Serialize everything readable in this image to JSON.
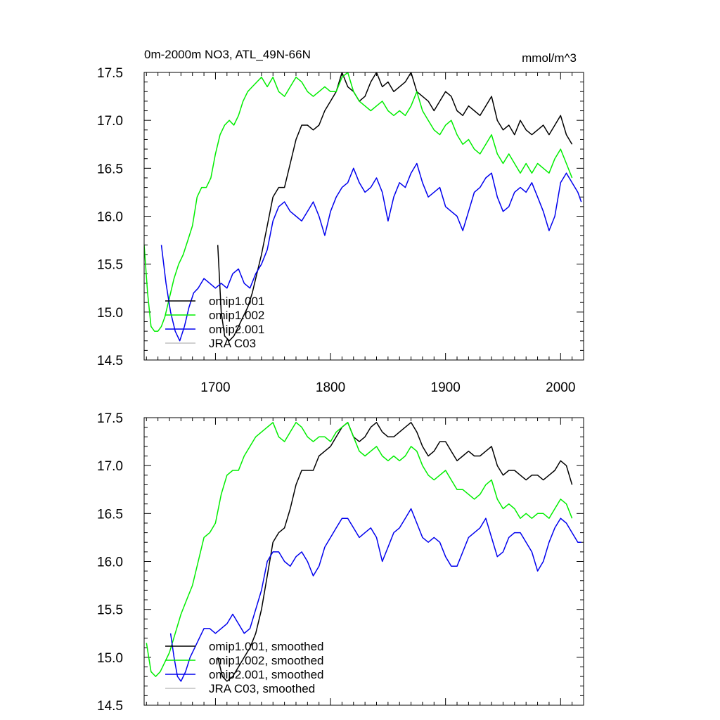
{
  "chart_data": [
    {
      "type": "line",
      "title": "0m-2000m NO3, ATL_49N-66N",
      "units": "mmol/m^3",
      "xlim": [
        1638,
        2020
      ],
      "ylim": [
        14.5,
        17.5
      ],
      "x_ticks": [
        1700,
        1800,
        1900,
        2000
      ],
      "y_ticks": [
        "14.5",
        "15.0",
        "15.5",
        "16.0",
        "16.5",
        "17.0",
        "17.5"
      ],
      "show_x_tick_labels": true,
      "legend_position": "lower-left",
      "legend": [
        "omip1.001",
        "omip1.002",
        "omip2.001",
        "JRA C03"
      ],
      "series": [
        {
          "name": "omip1.001",
          "color": "#000000",
          "x": [
            1702,
            1705,
            1708,
            1712,
            1716,
            1720,
            1724,
            1728,
            1732,
            1736,
            1740,
            1745,
            1750,
            1755,
            1760,
            1765,
            1770,
            1775,
            1780,
            1785,
            1790,
            1795,
            1800,
            1805,
            1810,
            1815,
            1820,
            1825,
            1830,
            1835,
            1840,
            1845,
            1850,
            1855,
            1860,
            1865,
            1870,
            1875,
            1880,
            1885,
            1890,
            1895,
            1900,
            1905,
            1910,
            1915,
            1920,
            1925,
            1930,
            1935,
            1940,
            1945,
            1950,
            1955,
            1960,
            1965,
            1970,
            1975,
            1980,
            1985,
            1990,
            1995,
            2000,
            2005,
            2010
          ],
          "y": [
            15.7,
            15.0,
            14.75,
            14.7,
            14.75,
            14.85,
            14.95,
            15.05,
            15.2,
            15.4,
            15.6,
            15.9,
            16.2,
            16.3,
            16.3,
            16.55,
            16.8,
            16.95,
            16.95,
            16.9,
            16.95,
            17.1,
            17.2,
            17.3,
            17.5,
            17.35,
            17.3,
            17.2,
            17.25,
            17.4,
            17.5,
            17.35,
            17.4,
            17.3,
            17.35,
            17.4,
            17.5,
            17.3,
            17.25,
            17.2,
            17.1,
            17.2,
            17.3,
            17.25,
            17.1,
            17.05,
            17.15,
            17.1,
            17.05,
            17.15,
            17.25,
            17.0,
            16.9,
            16.95,
            16.85,
            17.0,
            16.9,
            16.85,
            16.9,
            16.95,
            16.85,
            16.95,
            17.05,
            16.85,
            16.75
          ]
        },
        {
          "name": "omip1.002",
          "color": "#00ee00",
          "x": [
            1638,
            1641,
            1644,
            1647,
            1650,
            1653,
            1656,
            1660,
            1664,
            1668,
            1672,
            1676,
            1680,
            1684,
            1688,
            1692,
            1696,
            1700,
            1704,
            1708,
            1712,
            1716,
            1720,
            1724,
            1728,
            1732,
            1736,
            1740,
            1745,
            1750,
            1755,
            1760,
            1765,
            1770,
            1775,
            1780,
            1785,
            1790,
            1795,
            1800,
            1805,
            1810,
            1815,
            1820,
            1825,
            1830,
            1835,
            1840,
            1845,
            1850,
            1855,
            1860,
            1865,
            1870,
            1875,
            1880,
            1885,
            1890,
            1895,
            1900,
            1905,
            1910,
            1915,
            1920,
            1925,
            1930,
            1935,
            1940,
            1945,
            1950,
            1955,
            1960,
            1965,
            1970,
            1975,
            1980,
            1985,
            1990,
            1995,
            2000,
            2005,
            2010
          ],
          "y": [
            15.7,
            15.2,
            14.85,
            14.8,
            14.8,
            14.85,
            14.95,
            15.15,
            15.35,
            15.5,
            15.6,
            15.75,
            15.9,
            16.2,
            16.3,
            16.3,
            16.4,
            16.65,
            16.85,
            16.95,
            17.0,
            16.95,
            17.05,
            17.2,
            17.3,
            17.35,
            17.4,
            17.45,
            17.35,
            17.45,
            17.3,
            17.25,
            17.35,
            17.45,
            17.4,
            17.3,
            17.25,
            17.3,
            17.35,
            17.3,
            17.3,
            17.45,
            17.5,
            17.3,
            17.2,
            17.15,
            17.1,
            17.15,
            17.2,
            17.1,
            17.05,
            17.1,
            17.05,
            17.15,
            17.3,
            17.1,
            17.0,
            16.9,
            16.85,
            16.95,
            17.0,
            16.85,
            16.75,
            16.8,
            16.7,
            16.65,
            16.75,
            16.85,
            16.65,
            16.55,
            16.65,
            16.55,
            16.45,
            16.55,
            16.45,
            16.55,
            16.5,
            16.45,
            16.6,
            16.7,
            16.55,
            16.4
          ]
        },
        {
          "name": "omip2.001",
          "color": "#0000ee",
          "x": [
            1653,
            1657,
            1661,
            1665,
            1669,
            1673,
            1677,
            1681,
            1685,
            1690,
            1695,
            1700,
            1705,
            1710,
            1715,
            1720,
            1725,
            1730,
            1735,
            1740,
            1745,
            1750,
            1755,
            1760,
            1765,
            1770,
            1775,
            1780,
            1785,
            1790,
            1795,
            1800,
            1805,
            1810,
            1815,
            1820,
            1825,
            1830,
            1835,
            1840,
            1845,
            1850,
            1855,
            1860,
            1865,
            1870,
            1875,
            1880,
            1885,
            1890,
            1895,
            1900,
            1905,
            1910,
            1915,
            1920,
            1925,
            1930,
            1935,
            1940,
            1945,
            1950,
            1955,
            1960,
            1965,
            1970,
            1975,
            1980,
            1985,
            1990,
            1995,
            2000,
            2005,
            2010,
            2015,
            2018
          ],
          "y": [
            15.7,
            15.3,
            15.0,
            14.8,
            14.7,
            14.85,
            15.05,
            15.2,
            15.25,
            15.35,
            15.3,
            15.25,
            15.3,
            15.25,
            15.4,
            15.45,
            15.3,
            15.25,
            15.4,
            15.5,
            15.65,
            15.95,
            16.1,
            16.15,
            16.05,
            16.0,
            15.95,
            16.05,
            16.15,
            16.0,
            15.8,
            16.05,
            16.2,
            16.3,
            16.35,
            16.5,
            16.35,
            16.25,
            16.3,
            16.4,
            16.25,
            15.95,
            16.2,
            16.35,
            16.3,
            16.45,
            16.55,
            16.35,
            16.2,
            16.25,
            16.3,
            16.1,
            16.05,
            16.0,
            15.85,
            16.05,
            16.25,
            16.3,
            16.4,
            16.45,
            16.2,
            16.05,
            16.1,
            16.25,
            16.3,
            16.25,
            16.35,
            16.2,
            16.05,
            15.85,
            16.0,
            16.35,
            16.45,
            16.35,
            16.25,
            16.15
          ]
        },
        {
          "name": "JRA C03",
          "color": "#c0c0c0",
          "x": [],
          "y": []
        }
      ]
    },
    {
      "type": "line",
      "title": "",
      "xlim": [
        1638,
        2020
      ],
      "ylim": [
        14.5,
        17.5
      ],
      "x_ticks": [
        1700,
        1800,
        1900,
        2000
      ],
      "y_ticks": [
        "14.5",
        "15.0",
        "15.5",
        "16.0",
        "16.5",
        "17.0",
        "17.5"
      ],
      "show_x_tick_labels": false,
      "legend_position": "lower-left",
      "legend": [
        "omip1.001, smoothed",
        "omip1.002, smoothed",
        "omip2.001, smoothed",
        "JRA C03, smoothed"
      ],
      "series": [
        {
          "name": "omip1.001, smoothed",
          "color": "#000000",
          "x": [
            1702,
            1706,
            1710,
            1715,
            1720,
            1725,
            1730,
            1735,
            1740,
            1745,
            1750,
            1755,
            1760,
            1765,
            1770,
            1775,
            1780,
            1785,
            1790,
            1795,
            1800,
            1805,
            1810,
            1815,
            1820,
            1825,
            1830,
            1835,
            1840,
            1845,
            1850,
            1855,
            1860,
            1865,
            1870,
            1875,
            1880,
            1885,
            1890,
            1895,
            1900,
            1905,
            1910,
            1915,
            1920,
            1925,
            1930,
            1935,
            1940,
            1945,
            1950,
            1955,
            1960,
            1965,
            1970,
            1975,
            1980,
            1985,
            1990,
            1995,
            2000,
            2005,
            2010
          ],
          "y": [
            15.0,
            14.8,
            14.75,
            14.8,
            14.9,
            15.0,
            15.1,
            15.25,
            15.5,
            15.85,
            16.2,
            16.3,
            16.35,
            16.55,
            16.8,
            16.95,
            16.95,
            16.95,
            17.1,
            17.15,
            17.2,
            17.3,
            17.4,
            17.45,
            17.3,
            17.25,
            17.3,
            17.4,
            17.45,
            17.35,
            17.3,
            17.3,
            17.35,
            17.4,
            17.45,
            17.35,
            17.2,
            17.1,
            17.15,
            17.25,
            17.25,
            17.15,
            17.05,
            17.1,
            17.15,
            17.1,
            17.1,
            17.15,
            17.2,
            17.0,
            16.9,
            16.95,
            16.95,
            16.9,
            16.85,
            16.9,
            16.9,
            16.85,
            16.9,
            16.95,
            17.05,
            17.0,
            16.8
          ]
        },
        {
          "name": "omip1.002, smoothed",
          "color": "#00ee00",
          "x": [
            1640,
            1644,
            1648,
            1652,
            1656,
            1660,
            1665,
            1670,
            1675,
            1680,
            1685,
            1690,
            1695,
            1700,
            1705,
            1710,
            1715,
            1720,
            1725,
            1730,
            1735,
            1740,
            1745,
            1750,
            1755,
            1760,
            1765,
            1770,
            1775,
            1780,
            1785,
            1790,
            1795,
            1800,
            1805,
            1810,
            1815,
            1820,
            1825,
            1830,
            1835,
            1840,
            1845,
            1850,
            1855,
            1860,
            1865,
            1870,
            1875,
            1880,
            1885,
            1890,
            1895,
            1900,
            1905,
            1910,
            1915,
            1920,
            1925,
            1930,
            1935,
            1940,
            1945,
            1950,
            1955,
            1960,
            1965,
            1970,
            1975,
            1980,
            1985,
            1990,
            1995,
            2000,
            2005,
            2010
          ],
          "y": [
            15.15,
            14.85,
            14.8,
            14.85,
            14.95,
            15.05,
            15.25,
            15.45,
            15.6,
            15.75,
            16.0,
            16.25,
            16.3,
            16.4,
            16.7,
            16.9,
            16.95,
            16.95,
            17.1,
            17.2,
            17.3,
            17.35,
            17.4,
            17.45,
            17.3,
            17.25,
            17.35,
            17.45,
            17.4,
            17.3,
            17.25,
            17.3,
            17.3,
            17.25,
            17.35,
            17.4,
            17.45,
            17.3,
            17.15,
            17.1,
            17.15,
            17.2,
            17.1,
            17.05,
            17.1,
            17.05,
            17.1,
            17.2,
            17.15,
            17.0,
            16.9,
            16.85,
            16.9,
            16.95,
            16.85,
            16.75,
            16.75,
            16.7,
            16.65,
            16.7,
            16.8,
            16.85,
            16.65,
            16.55,
            16.6,
            16.55,
            16.45,
            16.5,
            16.45,
            16.5,
            16.5,
            16.45,
            16.55,
            16.65,
            16.6,
            16.45
          ]
        },
        {
          "name": "omip2.001, smoothed",
          "color": "#0000ee",
          "x": [
            1661,
            1664,
            1667,
            1670,
            1674,
            1678,
            1682,
            1686,
            1690,
            1695,
            1700,
            1705,
            1710,
            1715,
            1720,
            1725,
            1730,
            1735,
            1740,
            1745,
            1750,
            1755,
            1760,
            1765,
            1770,
            1775,
            1780,
            1785,
            1790,
            1795,
            1800,
            1805,
            1810,
            1815,
            1820,
            1825,
            1830,
            1835,
            1840,
            1845,
            1850,
            1855,
            1860,
            1865,
            1870,
            1875,
            1880,
            1885,
            1890,
            1895,
            1900,
            1905,
            1910,
            1915,
            1920,
            1925,
            1930,
            1935,
            1940,
            1945,
            1950,
            1955,
            1960,
            1965,
            1970,
            1975,
            1980,
            1985,
            1990,
            1995,
            2000,
            2005,
            2010,
            2015,
            2018
          ],
          "y": [
            15.25,
            15.0,
            14.8,
            14.75,
            14.85,
            15.0,
            15.1,
            15.2,
            15.3,
            15.3,
            15.25,
            15.3,
            15.35,
            15.45,
            15.35,
            15.25,
            15.3,
            15.5,
            15.7,
            16.0,
            16.1,
            16.1,
            16.0,
            15.95,
            16.05,
            16.1,
            16.0,
            15.85,
            15.95,
            16.15,
            16.25,
            16.35,
            16.45,
            16.45,
            16.35,
            16.25,
            16.3,
            16.35,
            16.25,
            16.0,
            16.15,
            16.3,
            16.35,
            16.45,
            16.55,
            16.4,
            16.25,
            16.2,
            16.25,
            16.2,
            16.05,
            15.95,
            15.95,
            16.1,
            16.25,
            16.3,
            16.35,
            16.45,
            16.25,
            16.05,
            16.1,
            16.25,
            16.3,
            16.3,
            16.2,
            16.1,
            15.9,
            16.0,
            16.2,
            16.35,
            16.45,
            16.4,
            16.3,
            16.2,
            16.2
          ]
        },
        {
          "name": "JRA C03, smoothed",
          "color": "#c0c0c0",
          "x": [],
          "y": []
        }
      ]
    }
  ]
}
